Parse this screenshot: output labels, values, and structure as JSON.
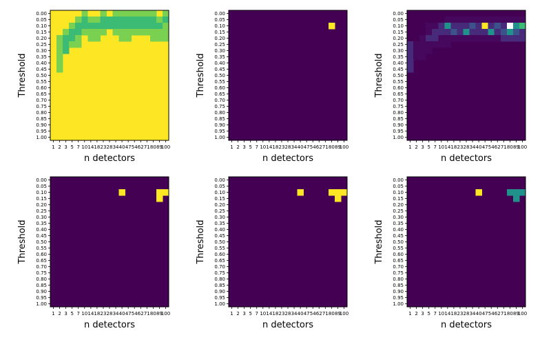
{
  "colors": {
    "purple": "#440154",
    "purple_light": "#46085c",
    "purple_mid": "#472a7a",
    "indigo": "#3b528b",
    "teal": "#21918c",
    "green": "#3cbb75",
    "lime": "#7ad151",
    "yellow": "#fde725",
    "white": "#ffffff"
  },
  "chart_data": [
    {
      "type": "heatmap",
      "xlabel": "n detectors",
      "ylabel": "Threshold",
      "x_ticks": [
        "1",
        "2",
        "3",
        "5",
        "7",
        "10",
        "14",
        "18",
        "23",
        "28",
        "34",
        "40",
        "47",
        "54",
        "62",
        "71",
        "80",
        "89",
        "100"
      ],
      "y_ticks": [
        "0.00",
        "0.05",
        "0.10",
        "0.15",
        "0.20",
        "0.25",
        "0.30",
        "0.35",
        "0.40",
        "0.45",
        "0.50",
        "0.55",
        "0.60",
        "0.65",
        "0.70",
        "0.75",
        "0.80",
        "0.85",
        "0.90",
        "0.95",
        "1.00"
      ],
      "default": "yellow",
      "cells": [
        {
          "r": 0,
          "c": 5,
          "v": "lime"
        },
        {
          "r": 0,
          "c": 8,
          "v": "lime"
        },
        {
          "r": 0,
          "c": 10,
          "v": "lime"
        },
        {
          "r": 0,
          "c": 11,
          "v": "lime"
        },
        {
          "r": 0,
          "c": 12,
          "v": "lime"
        },
        {
          "r": 0,
          "c": 13,
          "v": "lime"
        },
        {
          "r": 0,
          "c": 14,
          "v": "lime"
        },
        {
          "r": 0,
          "c": 15,
          "v": "lime"
        },
        {
          "r": 0,
          "c": 16,
          "v": "lime"
        },
        {
          "r": 0,
          "c": 18,
          "v": "lime"
        },
        {
          "r": 1,
          "c": 4,
          "v": "lime"
        },
        {
          "r": 1,
          "c": 5,
          "v": "green"
        },
        {
          "r": 1,
          "c": 6,
          "v": "lime"
        },
        {
          "r": 1,
          "c": 7,
          "v": "lime"
        },
        {
          "r": 1,
          "c": 8,
          "v": "green"
        },
        {
          "r": 1,
          "c": 9,
          "v": "green"
        },
        {
          "r": 1,
          "c": 10,
          "v": "green"
        },
        {
          "r": 1,
          "c": 11,
          "v": "green"
        },
        {
          "r": 1,
          "c": 12,
          "v": "green"
        },
        {
          "r": 1,
          "c": 13,
          "v": "green"
        },
        {
          "r": 1,
          "c": 14,
          "v": "green"
        },
        {
          "r": 1,
          "c": 15,
          "v": "green"
        },
        {
          "r": 1,
          "c": 16,
          "v": "green"
        },
        {
          "r": 1,
          "c": 17,
          "v": "lime"
        },
        {
          "r": 1,
          "c": 18,
          "v": "green"
        },
        {
          "r": 2,
          "c": 3,
          "v": "lime"
        },
        {
          "r": 2,
          "c": 4,
          "v": "green"
        },
        {
          "r": 2,
          "c": 5,
          "v": "green"
        },
        {
          "r": 2,
          "c": 6,
          "v": "green"
        },
        {
          "r": 2,
          "c": 7,
          "v": "green"
        },
        {
          "r": 2,
          "c": 8,
          "v": "green"
        },
        {
          "r": 2,
          "c": 9,
          "v": "green"
        },
        {
          "r": 2,
          "c": 10,
          "v": "green"
        },
        {
          "r": 2,
          "c": 11,
          "v": "green"
        },
        {
          "r": 2,
          "c": 12,
          "v": "green"
        },
        {
          "r": 2,
          "c": 13,
          "v": "green"
        },
        {
          "r": 2,
          "c": 14,
          "v": "green"
        },
        {
          "r": 2,
          "c": 15,
          "v": "green"
        },
        {
          "r": 2,
          "c": 16,
          "v": "green"
        },
        {
          "r": 2,
          "c": 17,
          "v": "green"
        },
        {
          "r": 2,
          "c": 18,
          "v": "lime"
        },
        {
          "r": 3,
          "c": 2,
          "v": "lime"
        },
        {
          "r": 3,
          "c": 3,
          "v": "green"
        },
        {
          "r": 3,
          "c": 4,
          "v": "green"
        },
        {
          "r": 3,
          "c": 5,
          "v": "lime"
        },
        {
          "r": 3,
          "c": 6,
          "v": "lime"
        },
        {
          "r": 3,
          "c": 7,
          "v": "lime"
        },
        {
          "r": 3,
          "c": 8,
          "v": "lime"
        },
        {
          "r": 3,
          "c": 10,
          "v": "lime"
        },
        {
          "r": 3,
          "c": 11,
          "v": "lime"
        },
        {
          "r": 3,
          "c": 12,
          "v": "lime"
        },
        {
          "r": 3,
          "c": 13,
          "v": "lime"
        },
        {
          "r": 3,
          "c": 14,
          "v": "lime"
        },
        {
          "r": 3,
          "c": 15,
          "v": "lime"
        },
        {
          "r": 3,
          "c": 16,
          "v": "lime"
        },
        {
          "r": 3,
          "c": 17,
          "v": "lime"
        },
        {
          "r": 3,
          "c": 18,
          "v": "lime"
        },
        {
          "r": 4,
          "c": 1,
          "v": "lime"
        },
        {
          "r": 4,
          "c": 2,
          "v": "green"
        },
        {
          "r": 4,
          "c": 3,
          "v": "green"
        },
        {
          "r": 4,
          "c": 4,
          "v": "lime"
        },
        {
          "r": 4,
          "c": 6,
          "v": "lime"
        },
        {
          "r": 4,
          "c": 7,
          "v": "lime"
        },
        {
          "r": 4,
          "c": 11,
          "v": "lime"
        },
        {
          "r": 4,
          "c": 12,
          "v": "lime"
        },
        {
          "r": 4,
          "c": 16,
          "v": "lime"
        },
        {
          "r": 4,
          "c": 17,
          "v": "lime"
        },
        {
          "r": 4,
          "c": 18,
          "v": "lime"
        },
        {
          "r": 5,
          "c": 1,
          "v": "lime"
        },
        {
          "r": 5,
          "c": 2,
          "v": "green"
        },
        {
          "r": 5,
          "c": 3,
          "v": "lime"
        },
        {
          "r": 5,
          "c": 4,
          "v": "lime"
        },
        {
          "r": 6,
          "c": 1,
          "v": "lime"
        },
        {
          "r": 6,
          "c": 2,
          "v": "green"
        },
        {
          "r": 7,
          "c": 1,
          "v": "lime"
        },
        {
          "r": 8,
          "c": 1,
          "v": "lime"
        },
        {
          "r": 9,
          "c": 1,
          "v": "lime"
        }
      ]
    },
    {
      "type": "heatmap",
      "xlabel": "n detectors",
      "ylabel": "Threshold",
      "x_ticks": [
        "1",
        "2",
        "3",
        "5",
        "7",
        "10",
        "14",
        "18",
        "23",
        "28",
        "34",
        "40",
        "47",
        "54",
        "62",
        "71",
        "80",
        "89",
        "100"
      ],
      "y_ticks": [
        "0.00",
        "0.05",
        "0.10",
        "0.15",
        "0.20",
        "0.25",
        "0.30",
        "0.35",
        "0.40",
        "0.45",
        "0.50",
        "0.55",
        "0.60",
        "0.65",
        "0.70",
        "0.75",
        "0.80",
        "0.85",
        "0.90",
        "0.95",
        "1.00"
      ],
      "default": "purple",
      "cells": [
        {
          "r": 2,
          "c": 16,
          "v": "yellow"
        }
      ]
    },
    {
      "type": "heatmap",
      "xlabel": "n detectors",
      "ylabel": "Threshold",
      "x_ticks": [
        "1",
        "2",
        "3",
        "5",
        "7",
        "10",
        "14",
        "18",
        "23",
        "28",
        "34",
        "40",
        "47",
        "54",
        "62",
        "71",
        "80",
        "89",
        "100"
      ],
      "y_ticks": [
        "0.00",
        "0.05",
        "0.10",
        "0.15",
        "0.20",
        "0.25",
        "0.30",
        "0.35",
        "0.40",
        "0.45",
        "0.50",
        "0.55",
        "0.60",
        "0.65",
        "0.70",
        "0.75",
        "0.80",
        "0.85",
        "0.90",
        "0.95",
        "1.00"
      ],
      "default": "purple",
      "cells": [
        {
          "r": 1,
          "c": 6,
          "v": "purple_light"
        },
        {
          "r": 1,
          "c": 7,
          "v": "purple_light"
        },
        {
          "r": 1,
          "c": 8,
          "v": "purple_light"
        },
        {
          "r": 1,
          "c": 9,
          "v": "purple_light"
        },
        {
          "r": 1,
          "c": 10,
          "v": "purple_light"
        },
        {
          "r": 1,
          "c": 11,
          "v": "purple_light"
        },
        {
          "r": 1,
          "c": 12,
          "v": "purple_light"
        },
        {
          "r": 1,
          "c": 13,
          "v": "purple_light"
        },
        {
          "r": 1,
          "c": 14,
          "v": "purple_light"
        },
        {
          "r": 1,
          "c": 15,
          "v": "purple_light"
        },
        {
          "r": 1,
          "c": 16,
          "v": "purple_light"
        },
        {
          "r": 1,
          "c": 17,
          "v": "purple_light"
        },
        {
          "r": 1,
          "c": 18,
          "v": "purple_light"
        },
        {
          "r": 2,
          "c": 3,
          "v": "purple_light"
        },
        {
          "r": 2,
          "c": 4,
          "v": "purple_light"
        },
        {
          "r": 2,
          "c": 5,
          "v": "purple_mid"
        },
        {
          "r": 2,
          "c": 6,
          "v": "teal"
        },
        {
          "r": 2,
          "c": 7,
          "v": "purple_mid"
        },
        {
          "r": 2,
          "c": 8,
          "v": "purple_mid"
        },
        {
          "r": 2,
          "c": 9,
          "v": "purple_mid"
        },
        {
          "r": 2,
          "c": 10,
          "v": "indigo"
        },
        {
          "r": 2,
          "c": 11,
          "v": "purple_mid"
        },
        {
          "r": 2,
          "c": 12,
          "v": "yellow"
        },
        {
          "r": 2,
          "c": 13,
          "v": "purple_mid"
        },
        {
          "r": 2,
          "c": 14,
          "v": "indigo"
        },
        {
          "r": 2,
          "c": 15,
          "v": "purple_mid"
        },
        {
          "r": 2,
          "c": 16,
          "v": "white"
        },
        {
          "r": 2,
          "c": 17,
          "v": "teal"
        },
        {
          "r": 2,
          "c": 18,
          "v": "green"
        },
        {
          "r": 3,
          "c": 3,
          "v": "purple_light"
        },
        {
          "r": 3,
          "c": 4,
          "v": "purple_mid"
        },
        {
          "r": 3,
          "c": 5,
          "v": "purple_mid"
        },
        {
          "r": 3,
          "c": 6,
          "v": "purple_mid"
        },
        {
          "r": 3,
          "c": 7,
          "v": "indigo"
        },
        {
          "r": 3,
          "c": 8,
          "v": "purple_mid"
        },
        {
          "r": 3,
          "c": 9,
          "v": "teal"
        },
        {
          "r": 3,
          "c": 10,
          "v": "purple_mid"
        },
        {
          "r": 3,
          "c": 11,
          "v": "purple_mid"
        },
        {
          "r": 3,
          "c": 12,
          "v": "purple_mid"
        },
        {
          "r": 3,
          "c": 13,
          "v": "teal"
        },
        {
          "r": 3,
          "c": 14,
          "v": "purple_mid"
        },
        {
          "r": 3,
          "c": 15,
          "v": "indigo"
        },
        {
          "r": 3,
          "c": 16,
          "v": "teal"
        },
        {
          "r": 3,
          "c": 17,
          "v": "indigo"
        },
        {
          "r": 3,
          "c": 18,
          "v": "purple_mid"
        },
        {
          "r": 4,
          "c": 2,
          "v": "purple_light"
        },
        {
          "r": 4,
          "c": 3,
          "v": "purple_mid"
        },
        {
          "r": 4,
          "c": 4,
          "v": "purple_mid"
        },
        {
          "r": 4,
          "c": 5,
          "v": "purple_light"
        },
        {
          "r": 4,
          "c": 6,
          "v": "purple_light"
        },
        {
          "r": 4,
          "c": 7,
          "v": "purple_light"
        },
        {
          "r": 4,
          "c": 8,
          "v": "purple_light"
        },
        {
          "r": 4,
          "c": 9,
          "v": "purple_light"
        },
        {
          "r": 4,
          "c": 10,
          "v": "purple_light"
        },
        {
          "r": 4,
          "c": 11,
          "v": "purple_light"
        },
        {
          "r": 4,
          "c": 12,
          "v": "purple_light"
        },
        {
          "r": 4,
          "c": 13,
          "v": "purple_light"
        },
        {
          "r": 4,
          "c": 14,
          "v": "purple_light"
        },
        {
          "r": 4,
          "c": 15,
          "v": "purple_mid"
        },
        {
          "r": 4,
          "c": 16,
          "v": "purple_mid"
        },
        {
          "r": 4,
          "c": 17,
          "v": "purple_mid"
        },
        {
          "r": 4,
          "c": 18,
          "v": "purple_mid"
        },
        {
          "r": 5,
          "c": 0,
          "v": "purple_mid"
        },
        {
          "r": 5,
          "c": 1,
          "v": "purple_light"
        },
        {
          "r": 5,
          "c": 2,
          "v": "purple_light"
        },
        {
          "r": 5,
          "c": 3,
          "v": "purple_light"
        },
        {
          "r": 5,
          "c": 4,
          "v": "purple_light"
        },
        {
          "r": 5,
          "c": 5,
          "v": "purple_light"
        },
        {
          "r": 5,
          "c": 6,
          "v": "purple_light"
        },
        {
          "r": 6,
          "c": 0,
          "v": "purple_mid"
        },
        {
          "r": 6,
          "c": 1,
          "v": "purple_light"
        },
        {
          "r": 6,
          "c": 2,
          "v": "purple_light"
        },
        {
          "r": 6,
          "c": 3,
          "v": "purple_light"
        },
        {
          "r": 7,
          "c": 0,
          "v": "purple_mid"
        },
        {
          "r": 7,
          "c": 1,
          "v": "purple_light"
        },
        {
          "r": 7,
          "c": 2,
          "v": "purple_light"
        },
        {
          "r": 8,
          "c": 0,
          "v": "purple_mid"
        },
        {
          "r": 9,
          "c": 0,
          "v": "purple_mid"
        }
      ]
    },
    {
      "type": "heatmap",
      "xlabel": "n detectors",
      "ylabel": "Threshold",
      "x_ticks": [
        "1",
        "2",
        "3",
        "5",
        "7",
        "10",
        "14",
        "18",
        "23",
        "28",
        "34",
        "40",
        "47",
        "54",
        "62",
        "71",
        "80",
        "89",
        "100"
      ],
      "y_ticks": [
        "0.00",
        "0.05",
        "0.10",
        "0.15",
        "0.20",
        "0.25",
        "0.30",
        "0.35",
        "0.40",
        "0.45",
        "0.50",
        "0.55",
        "0.60",
        "0.65",
        "0.70",
        "0.75",
        "0.80",
        "0.85",
        "0.90",
        "0.95",
        "1.00"
      ],
      "default": "purple",
      "cells": [
        {
          "r": 2,
          "c": 11,
          "v": "yellow"
        },
        {
          "r": 2,
          "c": 17,
          "v": "yellow"
        },
        {
          "r": 2,
          "c": 18,
          "v": "yellow"
        },
        {
          "r": 3,
          "c": 17,
          "v": "yellow"
        }
      ]
    },
    {
      "type": "heatmap",
      "xlabel": "n detectors",
      "ylabel": "Threshold",
      "x_ticks": [
        "1",
        "2",
        "3",
        "5",
        "7",
        "10",
        "14",
        "18",
        "23",
        "28",
        "34",
        "40",
        "47",
        "54",
        "62",
        "71",
        "80",
        "89",
        "100"
      ],
      "y_ticks": [
        "0.00",
        "0.05",
        "0.10",
        "0.15",
        "0.20",
        "0.25",
        "0.30",
        "0.35",
        "0.40",
        "0.45",
        "0.50",
        "0.55",
        "0.60",
        "0.65",
        "0.70",
        "0.75",
        "0.80",
        "0.85",
        "0.90",
        "0.95",
        "1.00"
      ],
      "default": "purple",
      "cells": [
        {
          "r": 2,
          "c": 11,
          "v": "yellow"
        },
        {
          "r": 2,
          "c": 16,
          "v": "yellow"
        },
        {
          "r": 2,
          "c": 17,
          "v": "yellow"
        },
        {
          "r": 2,
          "c": 18,
          "v": "yellow"
        },
        {
          "r": 3,
          "c": 17,
          "v": "yellow"
        }
      ]
    },
    {
      "type": "heatmap",
      "xlabel": "n detectors",
      "ylabel": "Threshold",
      "x_ticks": [
        "1",
        "2",
        "3",
        "5",
        "7",
        "10",
        "14",
        "18",
        "23",
        "28",
        "34",
        "40",
        "47",
        "54",
        "62",
        "71",
        "80",
        "89",
        "100"
      ],
      "y_ticks": [
        "0.00",
        "0.05",
        "0.10",
        "0.15",
        "0.20",
        "0.25",
        "0.30",
        "0.35",
        "0.40",
        "0.45",
        "0.50",
        "0.55",
        "0.60",
        "0.65",
        "0.70",
        "0.75",
        "0.80",
        "0.85",
        "0.90",
        "0.95",
        "1.00"
      ],
      "default": "purple",
      "cells": [
        {
          "r": 2,
          "c": 11,
          "v": "yellow"
        },
        {
          "r": 2,
          "c": 16,
          "v": "teal"
        },
        {
          "r": 2,
          "c": 17,
          "v": "teal"
        },
        {
          "r": 2,
          "c": 18,
          "v": "teal"
        },
        {
          "r": 3,
          "c": 17,
          "v": "teal"
        }
      ]
    }
  ]
}
